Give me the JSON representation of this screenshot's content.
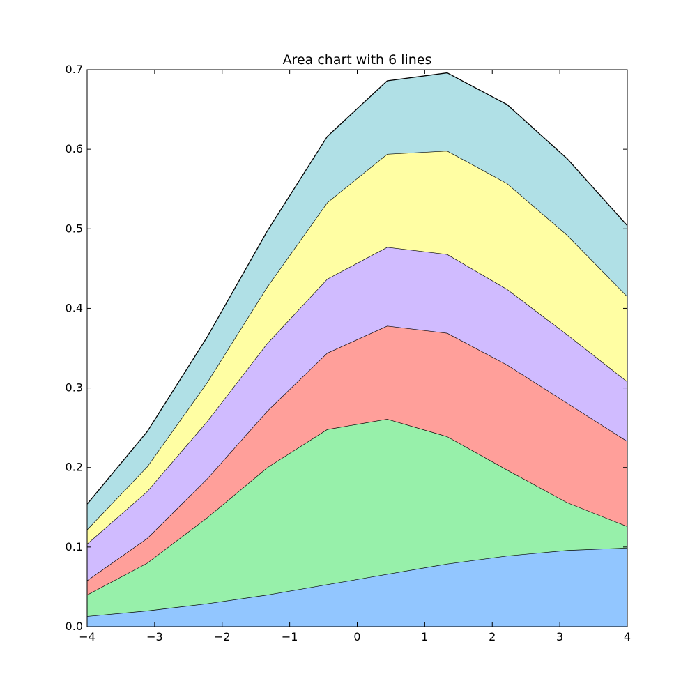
{
  "chart_data": {
    "type": "area",
    "stacked": true,
    "title": "Area chart with 6 lines",
    "xlabel": "",
    "ylabel": "",
    "xlim": [
      -4,
      4
    ],
    "ylim": [
      0,
      0.7
    ],
    "grid": false,
    "legend": "none",
    "x_tick_labels": [
      "−4",
      "−3",
      "−2",
      "−1",
      "0",
      "1",
      "2",
      "3",
      "4"
    ],
    "y_tick_labels": [
      "0.0",
      "0.1",
      "0.2",
      "0.3",
      "0.4",
      "0.5",
      "0.6",
      "0.7"
    ],
    "x": [
      -4.0,
      -3.111,
      -2.222,
      -1.333,
      -0.444,
      0.444,
      1.333,
      2.222,
      3.111,
      4.0
    ],
    "series": [
      {
        "color": "#92c6ff",
        "values": [
          0.013,
          0.02,
          0.029,
          0.04,
          0.053,
          0.066,
          0.079,
          0.089,
          0.096,
          0.099
        ]
      },
      {
        "color": "#97f0aa",
        "values": [
          0.027,
          0.06,
          0.108,
          0.16,
          0.195,
          0.195,
          0.16,
          0.108,
          0.06,
          0.027
        ]
      },
      {
        "color": "#ff9f9a",
        "values": [
          0.018,
          0.031,
          0.049,
          0.071,
          0.096,
          0.117,
          0.13,
          0.132,
          0.125,
          0.107
        ]
      },
      {
        "color": "#d0bbff",
        "values": [
          0.046,
          0.059,
          0.072,
          0.085,
          0.093,
          0.099,
          0.099,
          0.095,
          0.086,
          0.075
        ]
      },
      {
        "color": "#fffea3",
        "values": [
          0.018,
          0.031,
          0.049,
          0.071,
          0.096,
          0.117,
          0.13,
          0.133,
          0.125,
          0.107
        ]
      },
      {
        "color": "#b0e0e6",
        "values": [
          0.032,
          0.044,
          0.057,
          0.07,
          0.083,
          0.092,
          0.098,
          0.099,
          0.096,
          0.089
        ]
      }
    ]
  }
}
